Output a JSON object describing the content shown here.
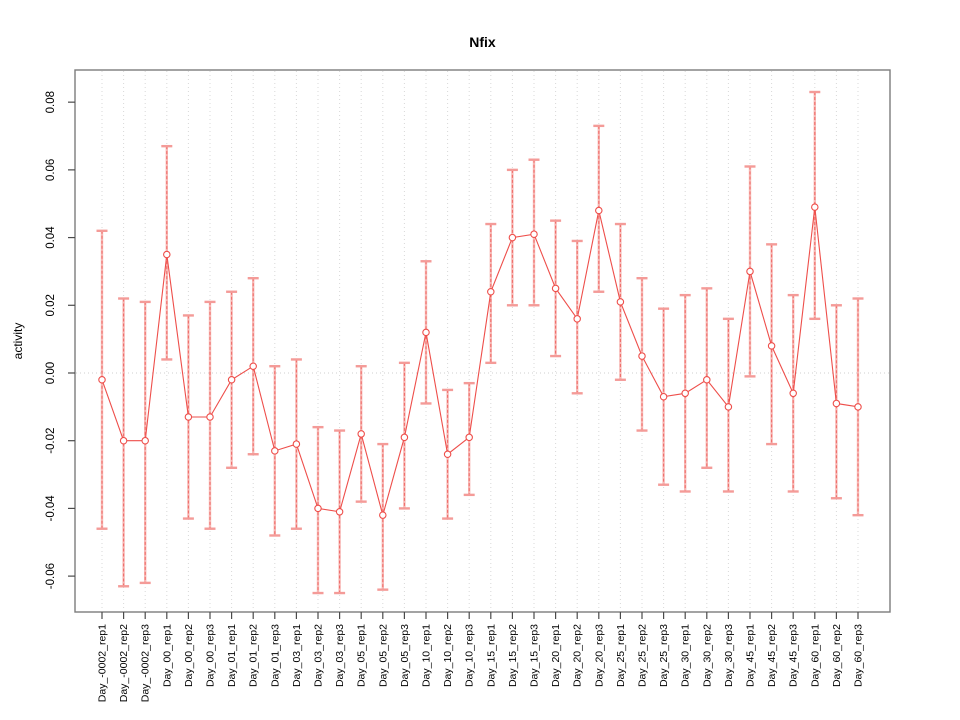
{
  "chart_data": {
    "type": "scatter",
    "title": "Nfix",
    "xlabel": "",
    "ylabel": "activity",
    "ylim": [
      -0.0706,
      0.0895
    ],
    "yticks": [
      -0.06,
      -0.04,
      -0.02,
      0.0,
      0.02,
      0.04,
      0.06,
      0.08
    ],
    "grid": {
      "vertical": "dotted line at every category",
      "horizontal": "dotted line at y=0 only"
    },
    "legend": "none",
    "marker": "open-circle",
    "series": [
      {
        "name": "activity",
        "connected": true,
        "categories": [
          "Day_-0002_rep1",
          "Day_-0002_rep2",
          "Day_-0002_rep3",
          "Day_00_rep1",
          "Day_00_rep2",
          "Day_00_rep3",
          "Day_01_rep1",
          "Day_01_rep2",
          "Day_01_rep3",
          "Day_03_rep1",
          "Day_03_rep2",
          "Day_03_rep3",
          "Day_05_rep1",
          "Day_05_rep2",
          "Day_05_rep3",
          "Day_10_rep1",
          "Day_10_rep2",
          "Day_10_rep3",
          "Day_15_rep1",
          "Day_15_rep2",
          "Day_15_rep3",
          "Day_20_rep1",
          "Day_20_rep2",
          "Day_20_rep3",
          "Day_25_rep1",
          "Day_25_rep2",
          "Day_25_rep3",
          "Day_30_rep1",
          "Day_30_rep2",
          "Day_30_rep3",
          "Day_45_rep1",
          "Day_45_rep2",
          "Day_45_rep3",
          "Day_60_rep1",
          "Day_60_rep2",
          "Day_60_rep3"
        ],
        "values": [
          -0.002,
          -0.02,
          -0.02,
          0.035,
          -0.013,
          -0.013,
          -0.002,
          0.002,
          -0.023,
          -0.021,
          -0.04,
          -0.041,
          -0.018,
          -0.042,
          -0.019,
          0.012,
          -0.024,
          -0.019,
          0.024,
          0.04,
          0.041,
          0.025,
          0.016,
          0.048,
          0.021,
          0.005,
          -0.007,
          -0.006,
          -0.002,
          -0.01,
          0.03,
          0.008,
          -0.006,
          0.049,
          -0.009,
          -0.01
        ],
        "err_low": [
          -0.046,
          -0.063,
          -0.062,
          0.004,
          -0.043,
          -0.046,
          -0.028,
          -0.024,
          -0.048,
          -0.046,
          -0.065,
          -0.065,
          -0.038,
          -0.064,
          -0.04,
          -0.009,
          -0.043,
          -0.036,
          0.003,
          0.02,
          0.02,
          0.005,
          -0.006,
          0.024,
          -0.002,
          -0.017,
          -0.033,
          -0.035,
          -0.028,
          -0.035,
          -0.001,
          -0.021,
          -0.035,
          0.016,
          -0.037,
          -0.042
        ],
        "err_high": [
          0.042,
          0.022,
          0.021,
          0.067,
          0.017,
          0.021,
          0.024,
          0.028,
          0.002,
          0.004,
          -0.016,
          -0.017,
          0.002,
          -0.021,
          0.003,
          0.033,
          -0.005,
          -0.003,
          0.044,
          0.06,
          0.063,
          0.045,
          0.039,
          0.073,
          0.044,
          0.028,
          0.019,
          0.023,
          0.025,
          0.016,
          0.061,
          0.038,
          0.023,
          0.083,
          0.02,
          0.022
        ]
      }
    ],
    "colors": {
      "series": "#ee4e4a",
      "error_bar": "#f7b3b0",
      "error_cap": "#f49b98",
      "grid": "#d8d8d8",
      "zero_line": "#cfcfcf",
      "frame": "#7c7c7c",
      "tick": "#4a4a4a",
      "label": "#000000",
      "background": "#ffffff"
    }
  }
}
